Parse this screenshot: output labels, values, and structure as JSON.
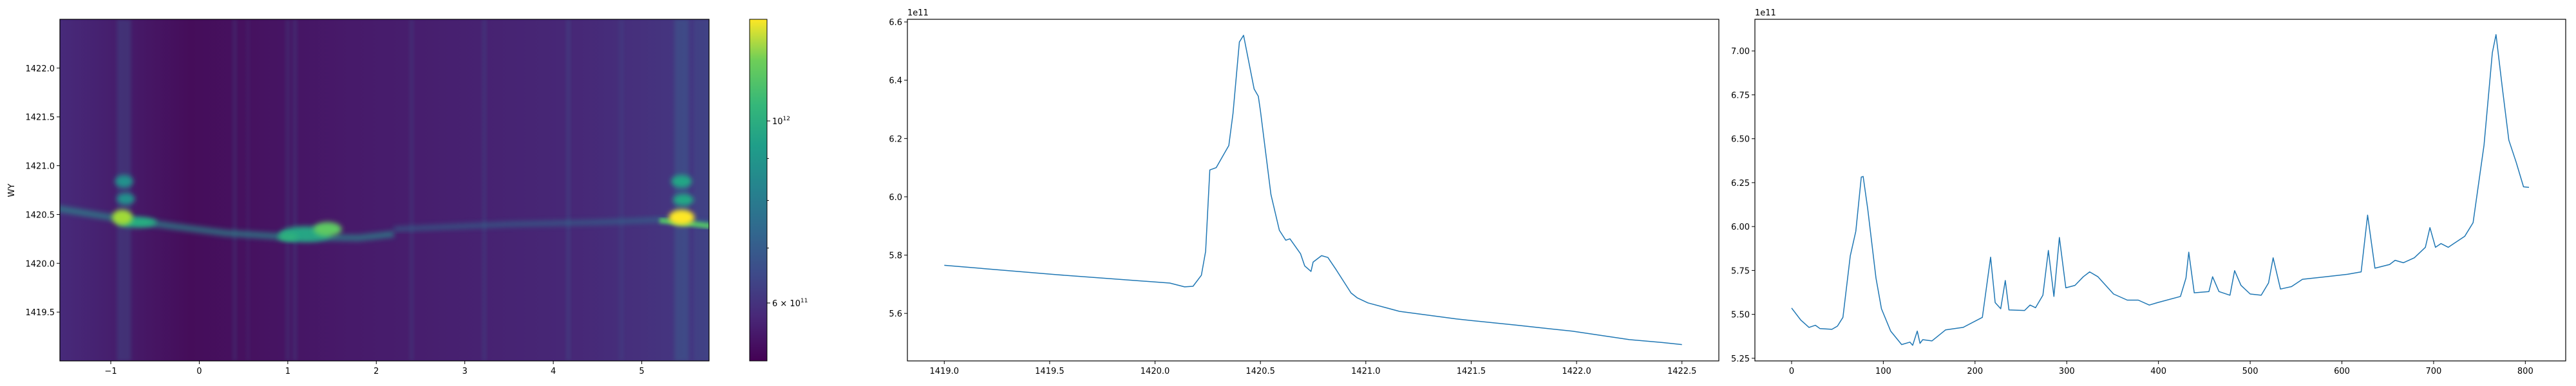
{
  "chart_data": [
    {
      "type": "heatmap",
      "title": "",
      "xlabel": "",
      "ylabel": "WY",
      "xlim": [
        -1.575,
        5.76
      ],
      "ylim": [
        1419.0,
        1422.5
      ],
      "xticks": [
        -1,
        0,
        1,
        2,
        3,
        4,
        5
      ],
      "xtick_labels": [
        "−1",
        "0",
        "1",
        "2",
        "3",
        "4",
        "5"
      ],
      "yticks": [
        1419.5,
        1420.0,
        1420.5,
        1421.0,
        1421.5,
        1422.0
      ],
      "ytick_labels": [
        "1419.5",
        "1420.0",
        "1420.5",
        "1421.0",
        "1421.5",
        "1422.0"
      ],
      "colormap": "viridis",
      "colorbar": {
        "scale": "log",
        "range": [
          510000000000.0,
          1330000000000.0
        ],
        "major_ticks": [
          1000000000000.0,
          600000000000.0
        ],
        "major_tick_labels": [
          "10^12",
          "6 × 10^11"
        ],
        "minor_ticks": [
          700000000000.0,
          800000000000.0,
          900000000000.0
        ]
      }
    },
    {
      "type": "line",
      "title": "",
      "xlabel": "",
      "ylabel": "",
      "offset_text": "1e11",
      "color": "#1f77b4",
      "xlim": [
        1418.825,
        1422.675
      ],
      "ylim": [
        5.437,
        6.609
      ],
      "xticks": [
        1419.0,
        1419.5,
        1420.0,
        1420.5,
        1421.0,
        1421.5,
        1422.0,
        1422.5
      ],
      "xtick_labels": [
        "1419.0",
        "1419.5",
        "1420.0",
        "1420.5",
        "1421.0",
        "1421.5",
        "1422.0",
        "1422.5"
      ],
      "yticks": [
        5.6,
        5.8,
        6.0,
        6.2,
        6.4,
        6.6
      ],
      "ytick_labels": [
        "5.6",
        "5.8",
        "6.0",
        "6.2",
        "6.4",
        "6.6"
      ],
      "x": [
        1419.0,
        1419.53,
        1420.07,
        1420.14,
        1420.18,
        1420.22,
        1420.24,
        1420.26,
        1420.29,
        1420.35,
        1420.37,
        1420.4,
        1420.42,
        1420.47,
        1420.49,
        1420.5,
        1420.55,
        1420.59,
        1420.62,
        1420.64,
        1420.69,
        1420.71,
        1420.74,
        1420.75,
        1420.79,
        1420.82,
        1420.86,
        1420.93,
        1420.96,
        1421.01,
        1421.16,
        1421.43,
        1421.71,
        1421.98,
        1422.25,
        1422.41,
        1422.5
      ],
      "y": [
        5.765,
        5.733,
        5.704,
        5.691,
        5.693,
        5.731,
        5.813,
        6.092,
        6.1,
        6.176,
        6.286,
        6.531,
        6.554,
        6.37,
        6.345,
        6.295,
        6.008,
        5.885,
        5.851,
        5.856,
        5.805,
        5.763,
        5.744,
        5.776,
        5.798,
        5.792,
        5.749,
        5.67,
        5.653,
        5.636,
        5.607,
        5.581,
        5.56,
        5.539,
        5.51,
        5.5,
        5.493
      ]
    },
    {
      "type": "line",
      "title": "",
      "xlabel": "",
      "ylabel": "",
      "offset_text": "1e11",
      "color": "#1f77b4",
      "xlim": [
        -40,
        844
      ],
      "ylim": [
        5.235,
        7.18
      ],
      "xticks": [
        0,
        100,
        200,
        300,
        400,
        500,
        600,
        700,
        800
      ],
      "xtick_labels": [
        "0",
        "100",
        "200",
        "300",
        "400",
        "500",
        "600",
        "700",
        "800"
      ],
      "yticks": [
        5.25,
        5.5,
        5.75,
        6.0,
        6.25,
        6.5,
        6.75,
        7.0
      ],
      "ytick_labels": [
        "5.25",
        "5.50",
        "5.75",
        "6.00",
        "6.25",
        "6.50",
        "6.75",
        "7.00"
      ],
      "x": [
        0,
        10,
        19,
        26,
        31,
        44,
        50,
        56,
        64,
        70,
        76,
        78,
        83,
        92,
        98,
        108,
        120,
        129,
        132,
        137,
        140,
        143,
        153,
        168,
        187,
        208,
        217,
        222,
        228,
        233,
        237,
        254,
        260,
        266,
        274,
        280,
        286,
        292,
        299,
        309,
        318,
        325,
        334,
        351,
        366,
        378,
        390,
        399,
        424,
        430,
        433,
        439,
        455,
        459,
        466,
        478,
        483,
        490,
        500,
        512,
        520,
        525,
        533,
        545,
        557,
        582,
        606,
        621,
        628,
        636,
        652,
        658,
        667,
        679,
        691,
        696,
        702,
        708,
        716,
        722,
        734,
        743,
        755,
        764,
        768,
        775,
        782,
        790,
        798,
        804
      ],
      "y": [
        5.536,
        5.468,
        5.426,
        5.438,
        5.419,
        5.415,
        5.433,
        5.483,
        5.833,
        5.973,
        6.282,
        6.285,
        6.1,
        5.707,
        5.532,
        5.405,
        5.328,
        5.342,
        5.324,
        5.405,
        5.335,
        5.356,
        5.349,
        5.412,
        5.426,
        5.483,
        5.826,
        5.567,
        5.532,
        5.693,
        5.525,
        5.522,
        5.553,
        5.538,
        5.609,
        5.864,
        5.602,
        5.938,
        5.651,
        5.665,
        5.714,
        5.742,
        5.714,
        5.616,
        5.581,
        5.581,
        5.553,
        5.567,
        5.602,
        5.707,
        5.854,
        5.623,
        5.63,
        5.714,
        5.63,
        5.609,
        5.749,
        5.665,
        5.616,
        5.609,
        5.679,
        5.822,
        5.644,
        5.658,
        5.7,
        5.714,
        5.728,
        5.742,
        6.065,
        5.763,
        5.784,
        5.808,
        5.794,
        5.822,
        5.882,
        5.994,
        5.882,
        5.903,
        5.882,
        5.903,
        5.945,
        6.022,
        6.464,
        6.99,
        7.093,
        6.787,
        6.492,
        6.366,
        6.226,
        6.223
      ]
    }
  ]
}
